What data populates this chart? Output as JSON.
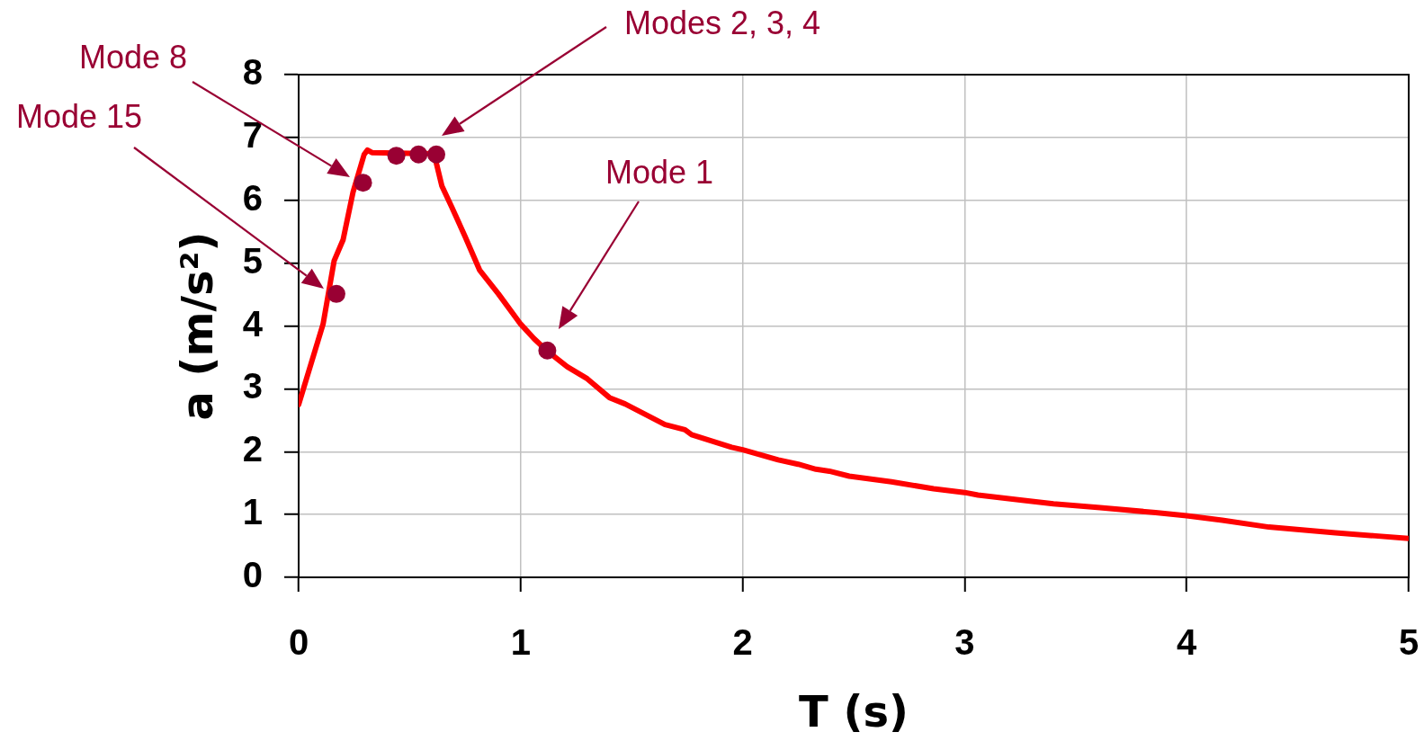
{
  "chart_data": {
    "type": "line",
    "xlabel": "T (s)",
    "ylabel": "a (m/s²)",
    "xlim": [
      0,
      5
    ],
    "ylim": [
      0,
      8
    ],
    "xticks": [
      0,
      1,
      2,
      3,
      4,
      5
    ],
    "yticks": [
      0,
      1,
      2,
      3,
      4,
      5,
      6,
      7,
      8
    ],
    "grid": true,
    "series": [
      {
        "color": "#ff0000",
        "x": [
          0,
          0.11,
          0.16,
          0.2,
          0.245,
          0.295,
          0.31,
          0.33,
          0.61,
          0.645,
          0.69,
          0.75,
          0.815,
          0.9,
          1.0,
          1.06,
          1.12,
          1.21,
          1.3,
          1.4,
          1.47,
          1.65,
          1.74,
          1.77,
          1.95,
          2.0,
          2.16,
          2.25,
          2.33,
          2.39,
          2.48,
          2.67,
          2.86,
          3.0,
          3.06,
          3.25,
          3.4,
          3.61,
          3.86,
          4.0,
          4.16,
          4.37,
          4.67,
          4.85,
          5.0
        ],
        "values": [
          2.75,
          4.03,
          5.04,
          5.37,
          6.13,
          6.73,
          6.8,
          6.76,
          6.74,
          6.23,
          5.89,
          5.42,
          4.89,
          4.51,
          4.03,
          3.8,
          3.6,
          3.35,
          3.16,
          2.86,
          2.76,
          2.43,
          2.35,
          2.27,
          2.07,
          2.03,
          1.87,
          1.8,
          1.72,
          1.69,
          1.61,
          1.52,
          1.41,
          1.35,
          1.31,
          1.23,
          1.17,
          1.11,
          1.03,
          0.98,
          0.91,
          0.8,
          0.71,
          0.66,
          0.62
        ]
      },
      {
        "type": "scatter",
        "color": "#990033",
        "marker": "circle",
        "x": [
          0.17,
          0.29,
          0.44,
          0.54,
          0.62,
          1.12
        ],
        "values": [
          4.51,
          6.28,
          6.71,
          6.73,
          6.73,
          3.61
        ]
      }
    ],
    "annotations": [
      "Modes 2, 3, 4",
      "Mode 8",
      "Mode 15",
      "Mode 1"
    ]
  }
}
